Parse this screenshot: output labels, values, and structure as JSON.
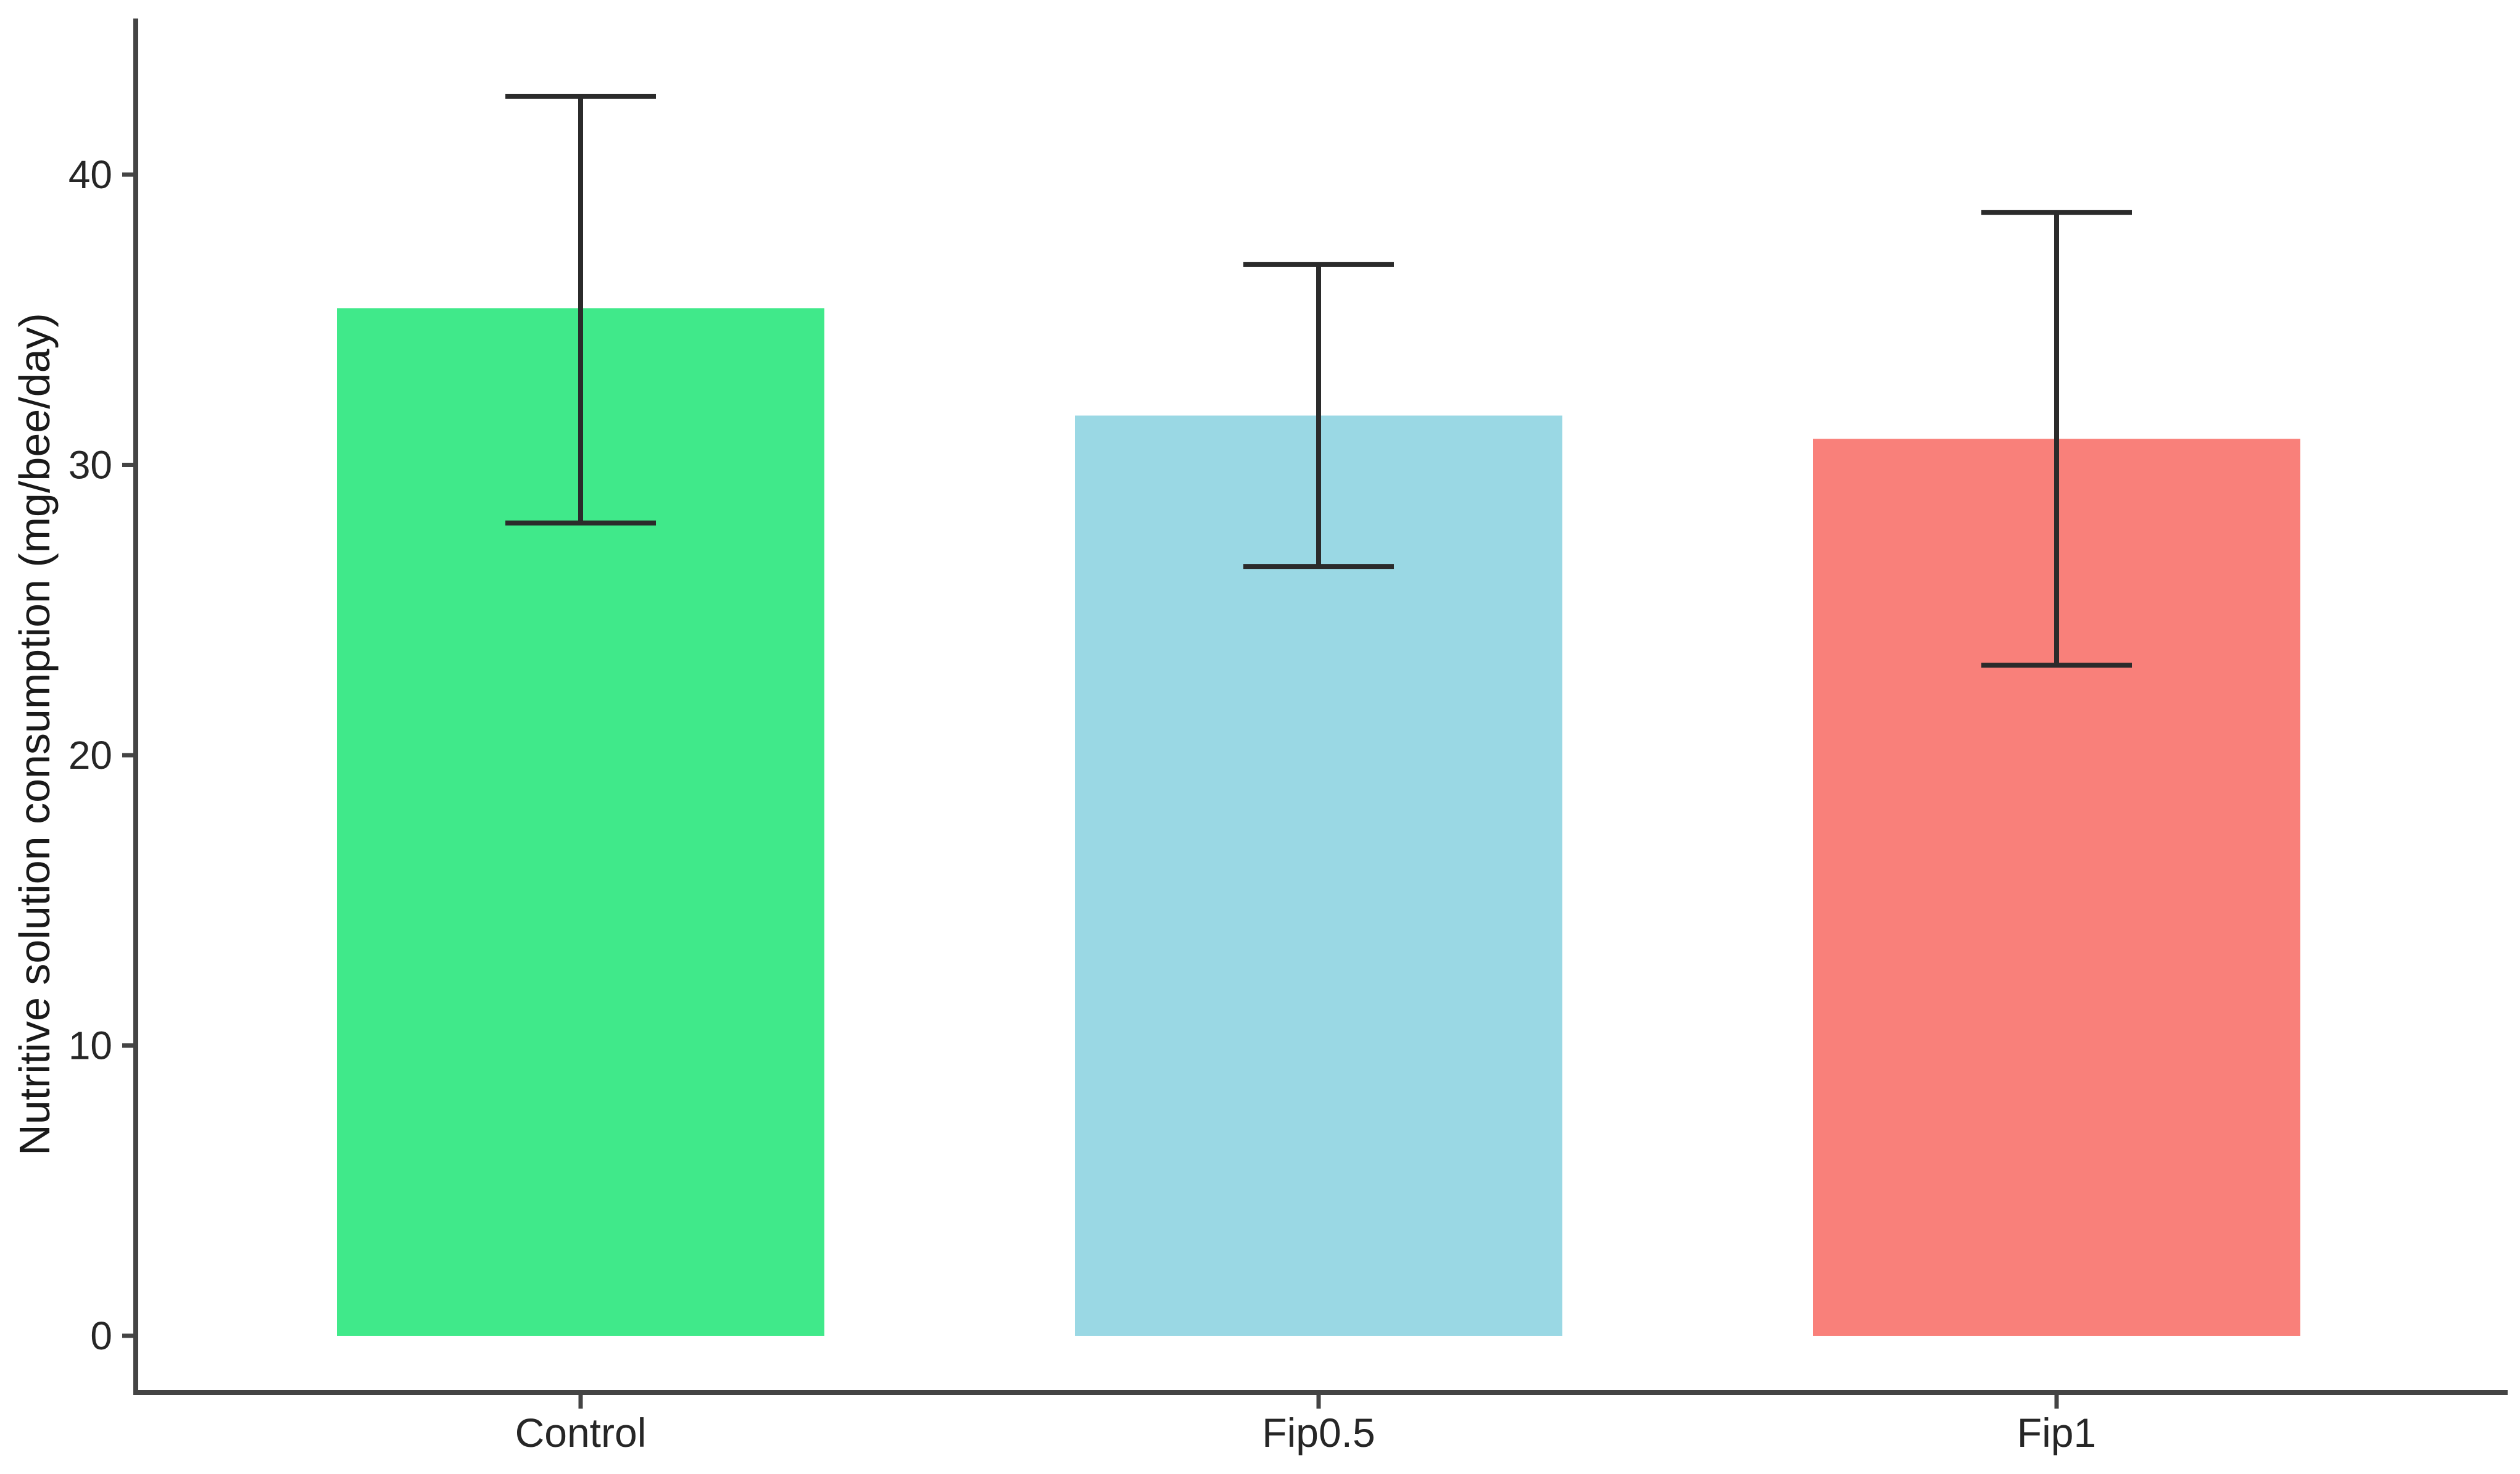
{
  "chart_data": {
    "type": "bar",
    "title": "",
    "ylabel": "Nutritive solution consumption (mg/bee/day)",
    "xlabel": "",
    "categories": [
      "Control",
      "Fip0.5",
      "Fip1"
    ],
    "values": [
      35.4,
      31.7,
      30.9
    ],
    "error_low": [
      28.0,
      26.5,
      23.1
    ],
    "error_high": [
      42.7,
      36.9,
      38.7
    ],
    "y_ticks": [
      0,
      10,
      20,
      30,
      40
    ],
    "ylim": [
      0,
      45.4
    ],
    "grid": false,
    "legend": "none",
    "bar_colors": [
      "#40E98A",
      "#9AD8E4",
      "#F9807A"
    ],
    "errorbar_color": "#2b2b2b",
    "axis_color": "#444444",
    "text_color": "#262626",
    "background": "#ffffff"
  }
}
